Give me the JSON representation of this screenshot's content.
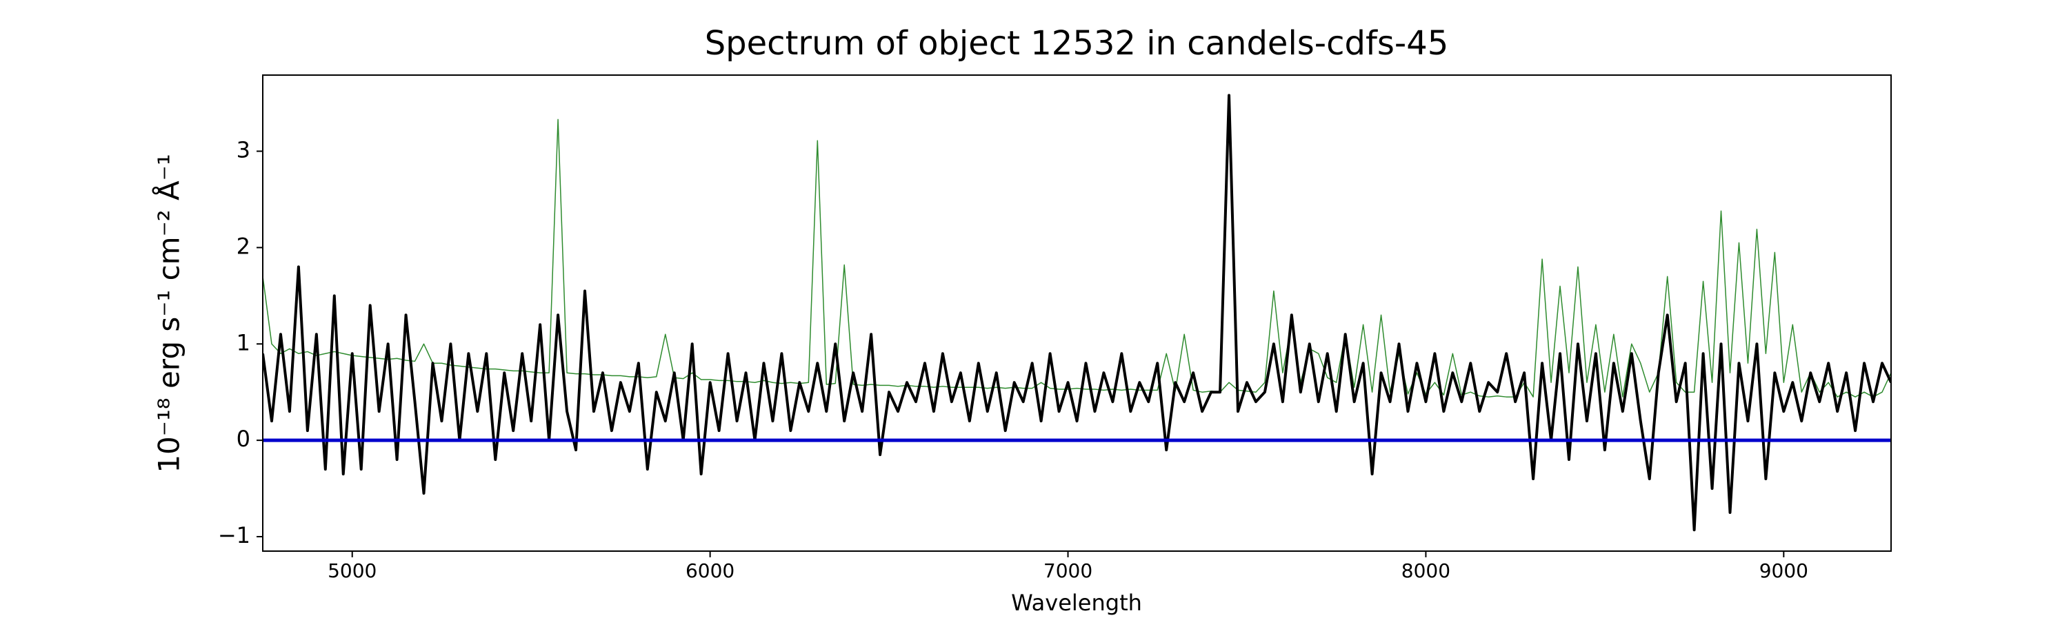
{
  "chart_data": {
    "type": "line",
    "title": "Spectrum of object 12532 in candels-cdfs-45",
    "xlabel": "Wavelength",
    "ylabel": "10⁻¹⁸ erg s⁻¹ cm⁻² Å⁻¹",
    "xlim": [
      4750,
      9300
    ],
    "ylim": [
      -1.15,
      3.79
    ],
    "xticks": [
      5000,
      6000,
      7000,
      8000,
      9000
    ],
    "yticks": [
      {
        "value": -1,
        "label": "−1"
      },
      0,
      1,
      2,
      3
    ],
    "x": [
      4750,
      4775,
      4800,
      4825,
      4850,
      4875,
      4900,
      4925,
      4950,
      4975,
      5000,
      5025,
      5050,
      5075,
      5100,
      5125,
      5150,
      5175,
      5200,
      5225,
      5250,
      5275,
      5300,
      5325,
      5350,
      5375,
      5400,
      5425,
      5450,
      5475,
      5500,
      5525,
      5550,
      5575,
      5600,
      5625,
      5650,
      5675,
      5700,
      5725,
      5750,
      5775,
      5800,
      5825,
      5850,
      5875,
      5900,
      5925,
      5950,
      5975,
      6000,
      6025,
      6050,
      6075,
      6100,
      6125,
      6150,
      6175,
      6200,
      6225,
      6250,
      6275,
      6300,
      6325,
      6350,
      6375,
      6400,
      6425,
      6450,
      6475,
      6500,
      6525,
      6550,
      6575,
      6600,
      6625,
      6650,
      6675,
      6700,
      6725,
      6750,
      6775,
      6800,
      6825,
      6850,
      6875,
      6900,
      6925,
      6950,
      6975,
      7000,
      7025,
      7050,
      7075,
      7100,
      7125,
      7150,
      7175,
      7200,
      7225,
      7250,
      7275,
      7300,
      7325,
      7350,
      7375,
      7400,
      7425,
      7450,
      7475,
      7500,
      7525,
      7550,
      7575,
      7600,
      7625,
      7650,
      7675,
      7700,
      7725,
      7750,
      7775,
      7800,
      7825,
      7850,
      7875,
      7900,
      7925,
      7950,
      7975,
      8000,
      8025,
      8050,
      8075,
      8100,
      8125,
      8150,
      8175,
      8200,
      8225,
      8250,
      8275,
      8300,
      8325,
      8350,
      8375,
      8400,
      8425,
      8450,
      8475,
      8500,
      8525,
      8550,
      8575,
      8600,
      8625,
      8650,
      8675,
      8700,
      8725,
      8750,
      8775,
      8800,
      8825,
      8850,
      8875,
      8900,
      8925,
      8950,
      8975,
      9000,
      9025,
      9050,
      9075,
      9100,
      9125,
      9150,
      9175,
      9200,
      9225,
      9250,
      9275,
      9300
    ],
    "series": [
      {
        "color": "#2e8b2e",
        "width": 1.5,
        "values": [
          1.7,
          1.0,
          0.9,
          0.95,
          0.9,
          0.92,
          0.88,
          0.9,
          0.92,
          0.9,
          0.88,
          0.87,
          0.86,
          0.85,
          0.84,
          0.85,
          0.83,
          0.82,
          1.0,
          0.8,
          0.8,
          0.78,
          0.77,
          0.76,
          0.75,
          0.74,
          0.74,
          0.73,
          0.72,
          0.72,
          0.71,
          0.7,
          0.7,
          3.33,
          0.7,
          0.69,
          0.69,
          0.68,
          0.68,
          0.67,
          0.67,
          0.66,
          0.66,
          0.65,
          0.66,
          1.1,
          0.65,
          0.64,
          0.7,
          0.63,
          0.63,
          0.62,
          0.62,
          0.61,
          0.61,
          0.6,
          0.62,
          0.6,
          0.59,
          0.6,
          0.59,
          0.6,
          3.11,
          0.58,
          0.59,
          1.82,
          0.58,
          0.57,
          0.58,
          0.57,
          0.57,
          0.56,
          0.57,
          0.56,
          0.56,
          0.55,
          0.56,
          0.55,
          0.55,
          0.55,
          0.55,
          0.54,
          0.55,
          0.54,
          0.55,
          0.54,
          0.54,
          0.6,
          0.54,
          0.53,
          0.53,
          0.54,
          0.53,
          0.53,
          0.52,
          0.53,
          0.52,
          0.53,
          0.52,
          0.52,
          0.52,
          0.9,
          0.51,
          1.1,
          0.52,
          0.5,
          0.51,
          0.5,
          0.6,
          0.52,
          0.51,
          0.5,
          0.6,
          1.55,
          0.7,
          1.2,
          0.6,
          0.95,
          0.9,
          0.65,
          0.6,
          1.1,
          0.55,
          1.2,
          0.5,
          1.3,
          0.5,
          0.9,
          0.48,
          0.7,
          0.48,
          0.6,
          0.47,
          0.9,
          0.47,
          0.5,
          0.46,
          0.45,
          0.46,
          0.45,
          0.45,
          0.6,
          0.45,
          1.88,
          0.6,
          1.6,
          0.7,
          1.8,
          0.6,
          1.2,
          0.5,
          1.1,
          0.45,
          1.0,
          0.8,
          0.5,
          0.7,
          1.7,
          0.6,
          0.5,
          0.5,
          1.65,
          0.6,
          2.38,
          0.7,
          2.05,
          0.8,
          2.19,
          0.9,
          1.95,
          0.6,
          1.2,
          0.5,
          0.7,
          0.5,
          0.6,
          0.45,
          0.5,
          0.45,
          0.5,
          0.45,
          0.5,
          0.7
        ]
      },
      {
        "color": "#000000",
        "width": 4,
        "values": [
          0.9,
          0.2,
          1.1,
          0.3,
          1.8,
          0.1,
          1.1,
          -0.3,
          1.5,
          -0.35,
          0.9,
          -0.3,
          1.4,
          0.3,
          1.0,
          -0.2,
          1.3,
          0.4,
          -0.55,
          0.8,
          0.2,
          1.0,
          0.0,
          0.9,
          0.3,
          0.9,
          -0.2,
          0.7,
          0.1,
          0.9,
          0.2,
          1.2,
          0.0,
          1.3,
          0.3,
          -0.1,
          1.55,
          0.3,
          0.7,
          0.1,
          0.6,
          0.3,
          0.8,
          -0.3,
          0.5,
          0.2,
          0.7,
          0.0,
          1.0,
          -0.35,
          0.6,
          0.1,
          0.9,
          0.2,
          0.7,
          0.0,
          0.8,
          0.2,
          0.9,
          0.1,
          0.6,
          0.3,
          0.8,
          0.3,
          1.0,
          0.2,
          0.7,
          0.3,
          1.1,
          -0.15,
          0.5,
          0.3,
          0.6,
          0.4,
          0.8,
          0.3,
          0.9,
          0.4,
          0.7,
          0.2,
          0.8,
          0.3,
          0.7,
          0.1,
          0.6,
          0.4,
          0.8,
          0.2,
          0.9,
          0.3,
          0.6,
          0.2,
          0.8,
          0.3,
          0.7,
          0.4,
          0.9,
          0.3,
          0.6,
          0.4,
          0.8,
          -0.1,
          0.6,
          0.4,
          0.7,
          0.3,
          0.5,
          0.5,
          3.58,
          0.3,
          0.6,
          0.4,
          0.5,
          1.0,
          0.4,
          1.3,
          0.5,
          1.0,
          0.4,
          0.9,
          0.3,
          1.1,
          0.4,
          0.8,
          -0.35,
          0.7,
          0.4,
          1.0,
          0.3,
          0.8,
          0.4,
          0.9,
          0.3,
          0.7,
          0.4,
          0.8,
          0.3,
          0.6,
          0.5,
          0.9,
          0.4,
          0.7,
          -0.4,
          0.8,
          0.0,
          0.9,
          -0.2,
          1.0,
          0.2,
          0.9,
          -0.1,
          0.8,
          0.3,
          0.9,
          0.2,
          -0.4,
          0.7,
          1.3,
          0.4,
          0.8,
          -0.93,
          0.9,
          -0.5,
          1.0,
          -0.75,
          0.8,
          0.2,
          1.0,
          -0.4,
          0.7,
          0.3,
          0.6,
          0.2,
          0.7,
          0.4,
          0.8,
          0.3,
          0.7,
          0.1,
          0.8,
          0.4,
          0.8,
          0.6
        ]
      }
    ],
    "hlines": [
      {
        "value": 0,
        "color": "#0000cc"
      }
    ]
  }
}
